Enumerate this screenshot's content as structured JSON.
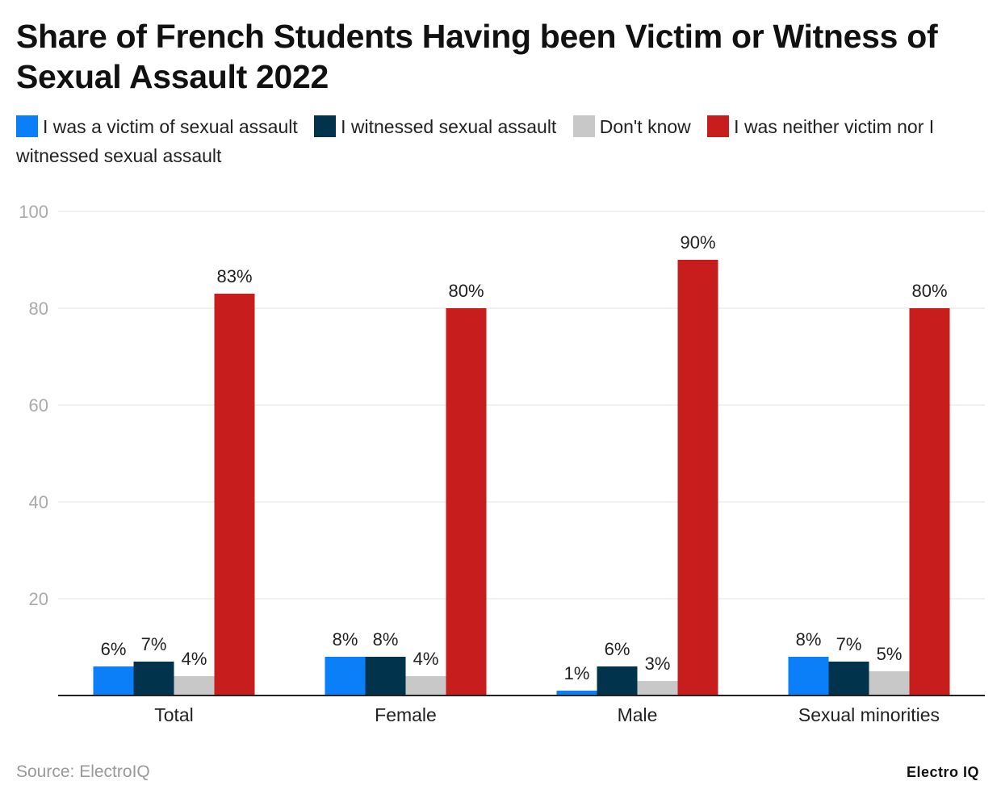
{
  "title": "Share of French Students Having been Victim or Witness of Sexual Assault 2022",
  "source": "Source: ElectroIQ",
  "brand": "Electro IQ",
  "chart_data": {
    "type": "bar",
    "title": "Share of French Students Having been Victim or Witness of Sexual Assault 2022",
    "categories": [
      "Total",
      "Female",
      "Male",
      "Sexual minorities"
    ],
    "series": [
      {
        "name": "I was a victim of sexual assault",
        "color": "#0b7ff7",
        "values": [
          6,
          8,
          1,
          8
        ],
        "labels": [
          "6%",
          "8%",
          "1%",
          "8%"
        ]
      },
      {
        "name": "I witnessed sexual assault",
        "color": "#01334c",
        "values": [
          7,
          8,
          6,
          7
        ],
        "labels": [
          "7%",
          "8%",
          "6%",
          "7%"
        ]
      },
      {
        "name": "Don't know",
        "color": "#c8c8c8",
        "values": [
          4,
          4,
          3,
          5
        ],
        "labels": [
          "4%",
          "4%",
          "3%",
          "5%"
        ]
      },
      {
        "name": "I was neither victim nor I witnessed sexual assault",
        "color": "#c81d1d",
        "values": [
          83,
          80,
          90,
          80
        ],
        "labels": [
          "83%",
          "80%",
          "90%",
          "80%"
        ]
      }
    ],
    "xlabel": "",
    "ylabel": "",
    "ylim": [
      0,
      100
    ],
    "yticks": [
      20,
      40,
      60,
      80,
      100
    ],
    "grid": true,
    "legend": "top"
  }
}
